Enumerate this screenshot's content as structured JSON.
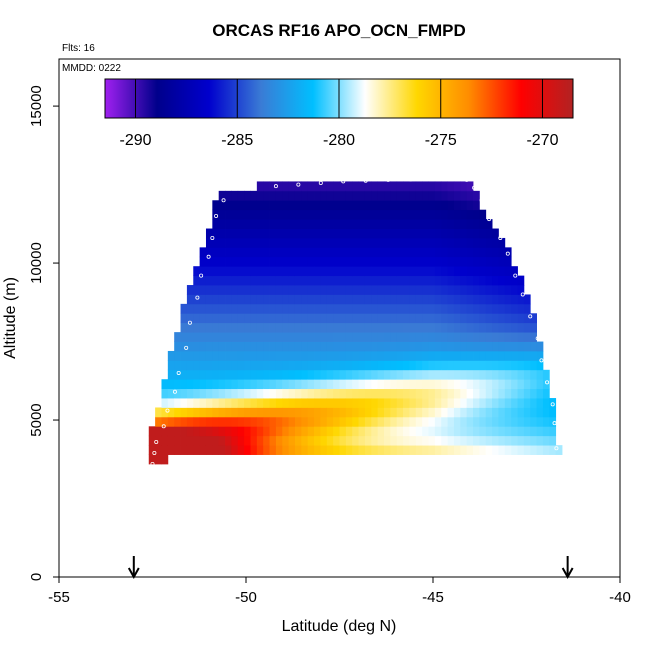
{
  "chart_data": {
    "type": "heatmap",
    "title": "ORCAS RF16 APO_OCN_FMPD",
    "xlabel": "Latitude (deg N)",
    "ylabel": "Altitude (m)",
    "xlim": [
      -55,
      -40
    ],
    "ylim": [
      0,
      16500
    ],
    "x_ticks": [
      "-55",
      "-50",
      "-45",
      "-40"
    ],
    "y_ticks": [
      "0",
      "5000",
      "10000",
      "15000"
    ],
    "annotations": [
      "Flts: 16",
      "MMDD: 0222"
    ],
    "colorbar": {
      "range": [
        -291.5,
        -268.5
      ],
      "ticks": [
        "-290",
        "-285",
        "-280",
        "-275",
        "-270"
      ],
      "colors": [
        "#a020f0",
        "#00008b",
        "#0000cd",
        "#3a7bd5",
        "#00bfff",
        "#ffffff",
        "#ffd700",
        "#ff8c00",
        "#ff0000",
        "#b22222"
      ]
    },
    "field": {
      "envelope": [
        [
          -52.6,
          3500,
          4500
        ],
        [
          -52.3,
          3700,
          5700
        ],
        [
          -52.0,
          3800,
          7200
        ],
        [
          -51.7,
          3800,
          8500
        ],
        [
          -51.4,
          3800,
          9700
        ],
        [
          -51.0,
          3800,
          10900
        ],
        [
          -50.8,
          3800,
          12000
        ],
        [
          -50.5,
          3800,
          12400
        ],
        [
          -49.0,
          3800,
          12500
        ],
        [
          -48.0,
          3800,
          12600
        ],
        [
          -47.0,
          3900,
          12700
        ],
        [
          -46.0,
          4000,
          12700
        ],
        [
          -45.0,
          4000,
          12700
        ],
        [
          -44.0,
          4000,
          12700
        ],
        [
          -43.9,
          4000,
          12300
        ],
        [
          -43.5,
          4000,
          11400
        ],
        [
          -43.0,
          4000,
          10400
        ],
        [
          -42.6,
          4000,
          9300
        ],
        [
          -42.3,
          4000,
          8300
        ],
        [
          -42.0,
          4000,
          6800
        ],
        [
          -41.8,
          4000,
          5700
        ],
        [
          -41.7,
          4000,
          4200
        ]
      ],
      "field_x_range": [
        -52.6,
        -41.7
      ],
      "field_alt_range": [
        3500,
        12700
      ],
      "cell_width_deg": 0.17,
      "cell_height_m": 300
    },
    "flight_markers": [
      [
        -52.5,
        3600
      ],
      [
        -52.45,
        3950
      ],
      [
        -52.4,
        4300
      ],
      [
        -52.2,
        4800
      ],
      [
        -52.1,
        5300
      ],
      [
        -51.9,
        5900
      ],
      [
        -51.8,
        6500
      ],
      [
        -51.6,
        7300
      ],
      [
        -51.5,
        8100
      ],
      [
        -51.3,
        8900
      ],
      [
        -51.2,
        9600
      ],
      [
        -51.0,
        10200
      ],
      [
        -50.9,
        10800
      ],
      [
        -50.8,
        11500
      ],
      [
        -50.6,
        12000
      ],
      [
        -50.4,
        12400
      ],
      [
        -49.8,
        12420
      ],
      [
        -49.2,
        12450
      ],
      [
        -48.6,
        12500
      ],
      [
        -48.0,
        12550
      ],
      [
        -47.4,
        12600
      ],
      [
        -46.8,
        12620
      ],
      [
        -46.2,
        12650
      ],
      [
        -45.6,
        12660
      ],
      [
        -45.0,
        12680
      ],
      [
        -44.5,
        12700
      ],
      [
        -44.1,
        12650
      ],
      [
        -43.9,
        12400
      ],
      [
        -43.7,
        12000
      ],
      [
        -43.5,
        11400
      ],
      [
        -43.2,
        10800
      ],
      [
        -43.0,
        10300
      ],
      [
        -42.8,
        9600
      ],
      [
        -42.6,
        9000
      ],
      [
        -42.4,
        8300
      ],
      [
        -42.2,
        7600
      ],
      [
        -42.1,
        6900
      ],
      [
        -41.95,
        6200
      ],
      [
        -41.8,
        5500
      ],
      [
        -41.75,
        4900
      ],
      [
        -41.7,
        4100
      ]
    ],
    "arrows_at_latitude": [
      -53.0,
      -41.4
    ]
  }
}
